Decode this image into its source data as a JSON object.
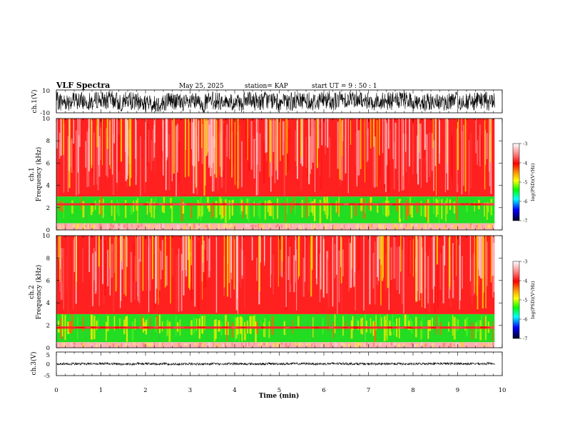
{
  "header": {
    "title": "VLF Spectra",
    "date": "May 25, 2025",
    "station": "station= KAP",
    "start": "start  UT  =   9  : 50 : 1"
  },
  "colors": {
    "spec_red": "#ff1a1a",
    "spec_yellow": "#e6e600",
    "spec_green": "#22e02a",
    "spec_pink": "#ffb0b0",
    "waveform": "#000000"
  },
  "chart_data": [
    {
      "id": "ch1-waveform",
      "type": "line",
      "ylabel": "ch.1(V)",
      "ylim": [
        -10,
        10
      ],
      "yticks": [
        "10",
        "-10"
      ],
      "xlim": [
        0,
        10
      ],
      "data_extent_min": 9.83,
      "amplitude_range": [
        -8,
        8
      ]
    },
    {
      "id": "ch1-spectrogram",
      "type": "heatmap",
      "ylabel": "ch.1\nFrequency (kHz)",
      "ylim": [
        0,
        10
      ],
      "yticks": [
        "0",
        "2",
        "4",
        "6",
        "8",
        "10"
      ],
      "xlim": [
        0,
        10
      ],
      "data_extent_min": 9.83,
      "bands_khz": [
        {
          "from": 0,
          "to": 0.6,
          "level": "pink-yellow"
        },
        {
          "from": 0.6,
          "to": 3.0,
          "level": "green-yellow"
        },
        {
          "from": 2.2,
          "to": 2.4,
          "level": "red-line"
        },
        {
          "from": 3.0,
          "to": 10,
          "level": "red"
        }
      ],
      "colorbar": {
        "label": "log(PSD)(V²/Hz)",
        "ticks": [
          "-3",
          "-4",
          "-5",
          "-6",
          "-7"
        ],
        "range": [
          -7,
          -3
        ]
      }
    },
    {
      "id": "ch2-spectrogram",
      "type": "heatmap",
      "ylabel": "ch.2\nFrequency (kHz)",
      "ylim": [
        0,
        10
      ],
      "yticks": [
        "0",
        "2",
        "4",
        "6",
        "8",
        "10"
      ],
      "xlim": [
        0,
        10
      ],
      "data_extent_min": 9.83,
      "bands_khz": [
        {
          "from": 0,
          "to": 0.5,
          "level": "pink-yellow"
        },
        {
          "from": 0.5,
          "to": 3.0,
          "level": "green-yellow"
        },
        {
          "from": 1.7,
          "to": 1.9,
          "level": "red-line"
        },
        {
          "from": 3.0,
          "to": 10,
          "level": "red"
        }
      ],
      "colorbar": {
        "label": "log(PSD)(V²/Hz)",
        "ticks": [
          "-3",
          "-4",
          "-5",
          "-6",
          "-7"
        ],
        "range": [
          -7,
          -3
        ]
      }
    },
    {
      "id": "ch3-waveform",
      "type": "line",
      "ylabel": "ch.3(V)",
      "ylim": [
        -5,
        5
      ],
      "yticks": [
        "5",
        "0",
        "-5"
      ],
      "xlim": [
        0,
        10
      ],
      "data_extent_min": 9.83,
      "amplitude_range": [
        -0.5,
        0.5
      ],
      "xlabel": "Time (min)",
      "xticks": [
        "0",
        "1",
        "2",
        "3",
        "4",
        "5",
        "6",
        "7",
        "8",
        "9",
        "10"
      ]
    }
  ]
}
